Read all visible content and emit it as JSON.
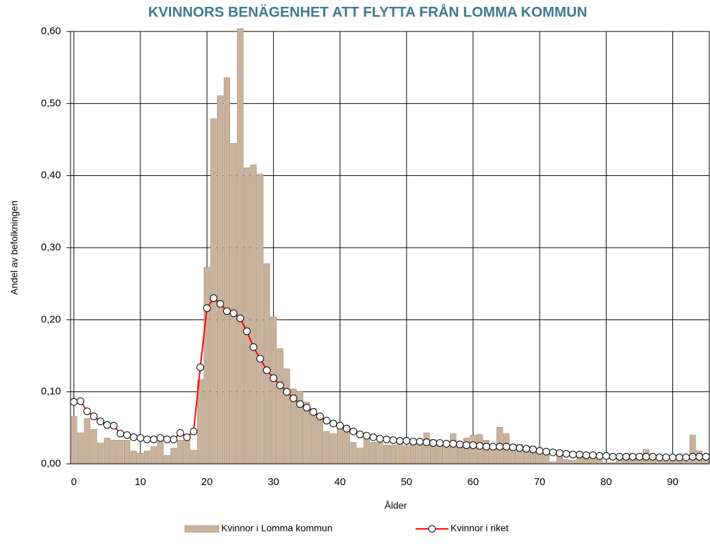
{
  "chart_data": {
    "type": "bar",
    "title": "KVINNORS BENÄGENHET ATT FLYTTA FRÅN LOMMA KOMMUN",
    "x_label": "Ålder",
    "y_label": "Andel av befolkningen",
    "x": [
      0,
      1,
      2,
      3,
      4,
      5,
      6,
      7,
      8,
      9,
      10,
      11,
      12,
      13,
      14,
      15,
      16,
      17,
      18,
      19,
      20,
      21,
      22,
      23,
      24,
      25,
      26,
      27,
      28,
      29,
      30,
      31,
      32,
      33,
      34,
      35,
      36,
      37,
      38,
      39,
      40,
      41,
      42,
      43,
      44,
      45,
      46,
      47,
      48,
      49,
      50,
      51,
      52,
      53,
      54,
      55,
      56,
      57,
      58,
      59,
      60,
      61,
      62,
      63,
      64,
      65,
      66,
      67,
      68,
      69,
      70,
      71,
      72,
      73,
      74,
      75,
      76,
      77,
      78,
      79,
      80,
      81,
      82,
      83,
      84,
      85,
      86,
      87,
      88,
      89,
      90,
      91,
      92,
      93,
      94,
      95
    ],
    "series": [
      {
        "name": "Kvinnor i Lomma kommun",
        "type": "bar",
        "color": "#c9b29b",
        "edge_color": "#9c8670",
        "values": [
          0.066,
          0.043,
          0.063,
          0.048,
          0.029,
          0.036,
          0.033,
          0.033,
          0.033,
          0.018,
          0.015,
          0.018,
          0.024,
          0.031,
          0.012,
          0.022,
          0.033,
          0.04,
          0.019,
          0.117,
          0.273,
          0.479,
          0.511,
          0.536,
          0.445,
          0.604,
          0.411,
          0.415,
          0.402,
          0.278,
          0.204,
          0.16,
          0.132,
          0.104,
          0.101,
          0.086,
          0.077,
          0.063,
          0.045,
          0.042,
          0.05,
          0.046,
          0.03,
          0.022,
          0.035,
          0.03,
          0.03,
          0.026,
          0.026,
          0.031,
          0.025,
          0.032,
          0.034,
          0.043,
          0.034,
          0.026,
          0.031,
          0.042,
          0.029,
          0.036,
          0.04,
          0.041,
          0.033,
          0.025,
          0.051,
          0.042,
          0.02,
          0.027,
          0.017,
          0.024,
          0.017,
          0.017,
          0.003,
          0.015,
          0.006,
          0.005,
          0.01,
          0.012,
          0.008,
          0.007,
          0.002,
          0.002,
          0.008,
          0.009,
          0.006,
          0.011,
          0.02,
          0.011,
          0.005,
          0.004,
          0.005,
          0.006,
          0.004,
          0.04,
          0.018,
          0.005
        ]
      },
      {
        "name": "Kvinnor i riket",
        "type": "line",
        "color": "#ff0000",
        "values": [
          0.086,
          0.087,
          0.073,
          0.066,
          0.059,
          0.054,
          0.053,
          0.042,
          0.04,
          0.037,
          0.036,
          0.034,
          0.034,
          0.036,
          0.034,
          0.034,
          0.043,
          0.037,
          0.045,
          0.134,
          0.216,
          0.23,
          0.222,
          0.212,
          0.209,
          0.202,
          0.184,
          0.162,
          0.146,
          0.13,
          0.119,
          0.109,
          0.1,
          0.091,
          0.083,
          0.078,
          0.072,
          0.066,
          0.06,
          0.056,
          0.053,
          0.049,
          0.045,
          0.041,
          0.039,
          0.037,
          0.035,
          0.034,
          0.033,
          0.032,
          0.032,
          0.031,
          0.031,
          0.03,
          0.029,
          0.029,
          0.028,
          0.028,
          0.027,
          0.026,
          0.026,
          0.025,
          0.024,
          0.024,
          0.024,
          0.024,
          0.023,
          0.022,
          0.021,
          0.02,
          0.018,
          0.017,
          0.016,
          0.015,
          0.014,
          0.013,
          0.013,
          0.012,
          0.012,
          0.011,
          0.011,
          0.01,
          0.01,
          0.01,
          0.01,
          0.01,
          0.01,
          0.01,
          0.009,
          0.009,
          0.009,
          0.009,
          0.009,
          0.01,
          0.01,
          0.01
        ]
      }
    ],
    "xlim": [
      -0.5,
      95.5
    ],
    "xticks": [
      0,
      10,
      20,
      30,
      40,
      50,
      60,
      70,
      80,
      90
    ],
    "ylim": [
      0,
      0.6
    ],
    "yticks": [
      {
        "value": 0,
        "label": "0,00"
      },
      {
        "value": 0.1,
        "label": "0,10"
      },
      {
        "value": 0.2,
        "label": "0,20"
      },
      {
        "value": 0.3,
        "label": "0,30"
      },
      {
        "value": 0.4,
        "label": "0,40"
      },
      {
        "value": 0.5,
        "label": "0,50"
      },
      {
        "value": 0.6,
        "label": "0,60"
      }
    ],
    "grid": true,
    "legend": "bottom"
  }
}
